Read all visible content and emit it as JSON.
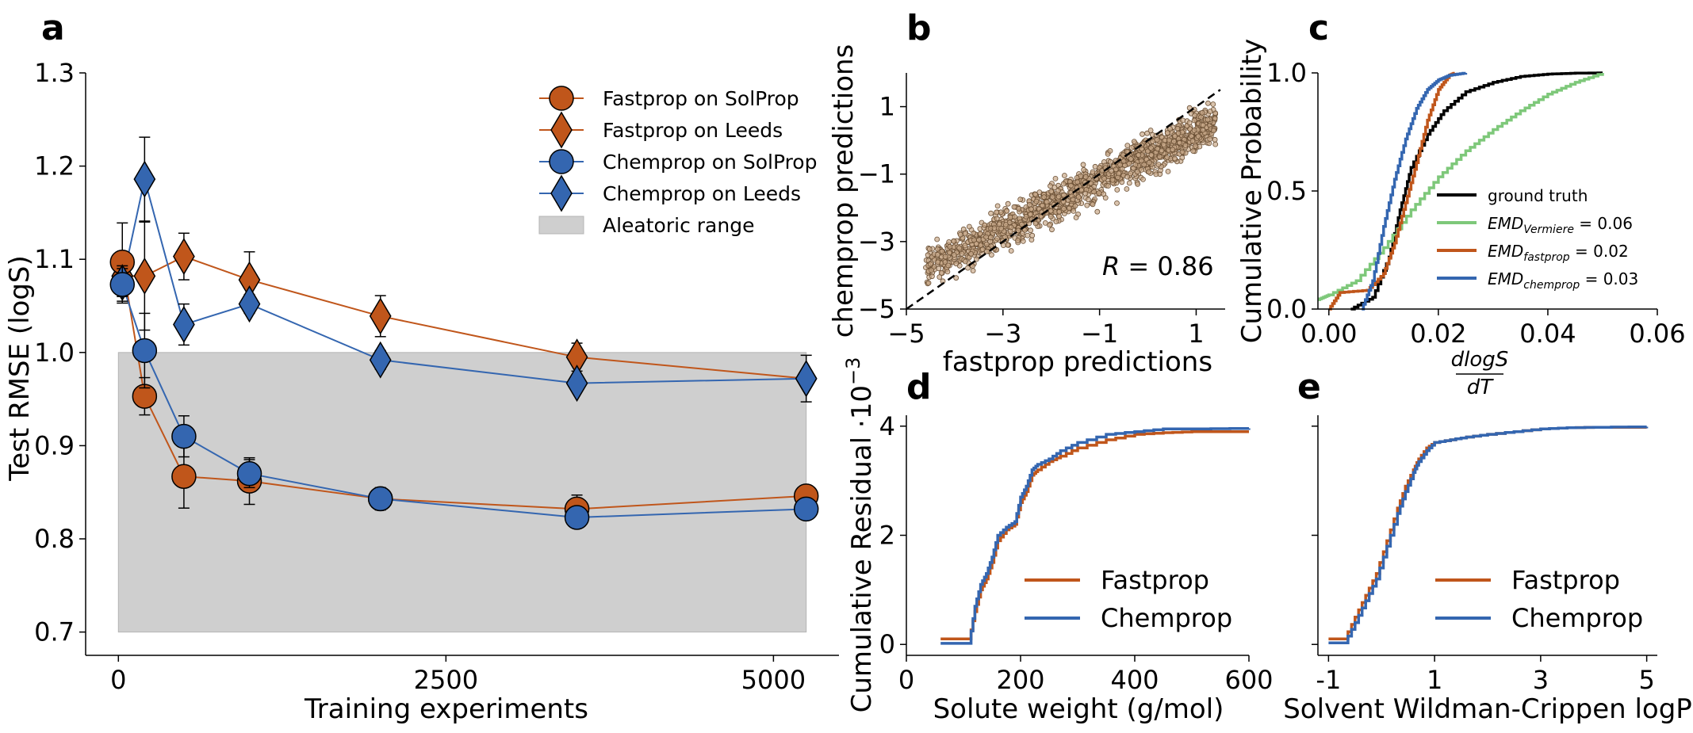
{
  "colors": {
    "fastprop": "#c0561b",
    "chemprop": "#3466b0",
    "aleatoric": "#cfcfcf",
    "ground_truth": "#000000",
    "vermiere": "#7ec87a",
    "scatter": "#b09070"
  },
  "panels": {
    "a": {
      "letter": "a"
    },
    "b": {
      "letter": "b"
    },
    "c": {
      "letter": "c"
    },
    "d": {
      "letter": "d"
    },
    "e": {
      "letter": "e"
    }
  },
  "chart_data": [
    {
      "id": "a",
      "type": "line",
      "xlabel": "Training experiments",
      "ylabel": "Test RMSE (logS)",
      "xlim": [
        -250,
        5500
      ],
      "ylim": [
        0.675,
        1.3
      ],
      "xticks": [
        0,
        2500,
        5000
      ],
      "xtick_labels": [
        "0",
        "2500",
        "5000"
      ],
      "yticks": [
        0.7,
        0.8,
        0.9,
        1.0,
        1.1,
        1.2,
        1.3
      ],
      "ytick_labels": [
        "0.7",
        "0.8",
        "0.9",
        "1.0",
        "1.1",
        "1.2",
        "1.3"
      ],
      "legend_position": "top-right",
      "aleatoric_band": {
        "label": "Aleatoric range",
        "x": [
          0,
          5250
        ],
        "y": [
          0.7,
          1.0
        ]
      },
      "series": [
        {
          "name": "Fastprop on SolProp",
          "marker": "circle",
          "color_key": "fastprop",
          "x": [
            30,
            200,
            500,
            1000,
            2000,
            3500,
            5250
          ],
          "y": [
            1.097,
            0.953,
            0.867,
            0.862,
            0.843,
            0.832,
            0.846
          ],
          "err": [
            0.042,
            0.02,
            0.034,
            0.025,
            0.012,
            0.015,
            0.01
          ]
        },
        {
          "name": "Fastprop on Leeds",
          "marker": "diamond",
          "color_key": "fastprop",
          "x": [
            30,
            200,
            500,
            1000,
            2000,
            3500,
            5250
          ],
          "y": [
            1.082,
            1.082,
            1.103,
            1.078,
            1.039,
            0.995,
            0.972
          ],
          "err": [
            0.02,
            0.058,
            0.025,
            0.03,
            0.022,
            0.015,
            0.005
          ]
        },
        {
          "name": "Chemprop on SolProp",
          "marker": "circle",
          "color_key": "chemprop",
          "x": [
            30,
            200,
            500,
            1000,
            2000,
            3500,
            5250
          ],
          "y": [
            1.073,
            1.002,
            0.91,
            0.87,
            0.843,
            0.823,
            0.832
          ],
          "err": [
            0.02,
            0.04,
            0.022,
            0.015,
            0.01,
            0.008,
            0.008
          ]
        },
        {
          "name": "Chemprop on Leeds",
          "marker": "diamond",
          "color_key": "chemprop",
          "x": [
            30,
            200,
            500,
            1000,
            2000,
            3500,
            5250
          ],
          "y": [
            1.075,
            1.186,
            1.03,
            1.052,
            0.992,
            0.967,
            0.972
          ],
          "err": [
            0.015,
            0.045,
            0.022,
            0.01,
            0.01,
            0.008,
            0.025
          ]
        }
      ]
    },
    {
      "id": "b",
      "type": "scatter",
      "xlabel": "fastprop predictions",
      "ylabel": "chemprop predictions",
      "xlim": [
        -5,
        1.6
      ],
      "ylim": [
        -5,
        2
      ],
      "xticks": [
        -5,
        -3,
        -1,
        1
      ],
      "xtick_labels": [
        "−5",
        "−3",
        "−1",
        "1"
      ],
      "yticks": [
        -5,
        -3,
        -1,
        1
      ],
      "ytick_labels": [
        "−5",
        "−3",
        "−1",
        "1"
      ],
      "annotation": {
        "r_symbol": "R",
        "r_text": " = 0.86"
      },
      "identity_line": [
        [
          -5,
          -5
        ],
        [
          1.5,
          1.5
        ]
      ],
      "point_cloud": {
        "slope": 0.72,
        "intercept": -0.45,
        "x_range": [
          -4.6,
          1.4
        ],
        "count": 1400
      }
    },
    {
      "id": "c",
      "type": "line",
      "xlabel_num": "dlogS",
      "xlabel_den": "dT",
      "ylabel": "Cumulative Probability",
      "xlim": [
        -0.002,
        0.06
      ],
      "ylim": [
        0,
        1
      ],
      "xticks": [
        0,
        0.02,
        0.04,
        0.06
      ],
      "xtick_labels": [
        "0.00",
        "0.02",
        "0.04",
        "0.06"
      ],
      "yticks": [
        0,
        0.5,
        1.0
      ],
      "ytick_labels": [
        "0.0",
        "0.5",
        "1.0"
      ],
      "legend_position": "lower-right",
      "series": [
        {
          "name": "ground truth",
          "color_key": "ground_truth",
          "cdf": {
            "x": [
              0.004,
              0.008,
              0.011,
              0.013,
              0.015,
              0.018,
              0.021,
              0.025,
              0.03,
              0.035,
              0.04,
              0.045,
              0.05
            ],
            "y": [
              0,
              0.05,
              0.22,
              0.42,
              0.6,
              0.74,
              0.84,
              0.92,
              0.96,
              0.985,
              0.995,
              0.999,
              1
            ]
          }
        },
        {
          "name": "EMD",
          "sub": "Vermiere",
          "value_text": " = 0.06",
          "color_key": "vermiere",
          "cdf": {
            "x": [
              -0.002,
              0,
              0.005,
              0.01,
              0.015,
              0.02,
              0.025,
              0.03,
              0.035,
              0.04,
              0.045,
              0.05
            ],
            "y": [
              0.04,
              0.06,
              0.12,
              0.26,
              0.42,
              0.56,
              0.67,
              0.76,
              0.84,
              0.91,
              0.96,
              1
            ]
          }
        },
        {
          "name": "EMD",
          "sub": "fastprop",
          "value_text": " = 0.02",
          "color_key": "fastprop",
          "cdf": {
            "x": [
              0,
              0.002,
              0.007,
              0.01,
              0.012,
              0.014,
              0.016,
              0.018,
              0.02,
              0.022,
              0.023
            ],
            "y": [
              0,
              0.07,
              0.08,
              0.15,
              0.28,
              0.45,
              0.62,
              0.8,
              0.93,
              0.99,
              1
            ]
          }
        },
        {
          "name": "EMD",
          "sub": "chemprop",
          "value_text": " = 0.03",
          "color_key": "chemprop",
          "cdf": {
            "x": [
              0.006,
              0.008,
              0.01,
              0.012,
              0.014,
              0.016,
              0.018,
              0.02,
              0.022,
              0.025
            ],
            "y": [
              0,
              0.12,
              0.35,
              0.55,
              0.72,
              0.85,
              0.93,
              0.97,
              0.99,
              1
            ]
          }
        }
      ]
    },
    {
      "id": "d",
      "type": "line",
      "xlabel": "Solute weight (g/mol)",
      "ylabel_main": "Cumulative Residual ·10",
      "ylabel_exp": "−3",
      "xlim": [
        0,
        600
      ],
      "ylim": [
        -0.2,
        4.2
      ],
      "xticks": [
        0,
        200,
        400,
        600
      ],
      "xtick_labels": [
        "0",
        "200",
        "400",
        "600"
      ],
      "yticks": [
        0,
        2,
        4
      ],
      "ytick_labels": [
        "0",
        "2",
        "4"
      ],
      "legend_position": "lower-right",
      "series": [
        {
          "name": "Fastprop",
          "color_key": "fastprop",
          "x": [
            60,
            110,
            120,
            130,
            140,
            150,
            160,
            175,
            190,
            200,
            210,
            220,
            230,
            250,
            270,
            300,
            350,
            400,
            450,
            500,
            600
          ],
          "y": [
            0.1,
            0.1,
            0.6,
            1.0,
            1.2,
            1.5,
            1.9,
            2.1,
            2.2,
            2.6,
            2.8,
            3.1,
            3.2,
            3.35,
            3.45,
            3.6,
            3.75,
            3.85,
            3.88,
            3.9,
            3.9
          ]
        },
        {
          "name": "Chemprop",
          "color_key": "chemprop",
          "x": [
            60,
            110,
            120,
            130,
            140,
            150,
            160,
            175,
            190,
            200,
            210,
            220,
            230,
            250,
            270,
            300,
            350,
            400,
            450,
            500,
            600
          ],
          "y": [
            0.02,
            0.02,
            0.7,
            1.1,
            1.3,
            1.6,
            2.0,
            2.15,
            2.25,
            2.7,
            2.9,
            3.2,
            3.3,
            3.4,
            3.55,
            3.7,
            3.85,
            3.9,
            3.95,
            3.95,
            3.96
          ]
        }
      ]
    },
    {
      "id": "e",
      "type": "line",
      "xlabel": "Solvent Wildman-Crippen logP",
      "xlim": [
        -1.2,
        5.2
      ],
      "ylim": [
        -0.2,
        4.2
      ],
      "xticks": [
        -1,
        1,
        3,
        5
      ],
      "xtick_labels": [
        "-1",
        "1",
        "3",
        "5"
      ],
      "yticks": [
        0,
        2,
        4
      ],
      "ytick_labels": [
        "",
        "",
        ""
      ],
      "legend_position": "lower-right",
      "series": [
        {
          "name": "Fastprop",
          "color_key": "fastprop",
          "x": [
            -1,
            -0.7,
            -0.5,
            -0.3,
            -0.1,
            0.1,
            0.3,
            0.45,
            0.6,
            0.7,
            0.85,
            1.0,
            1.3,
            1.6,
            2.0,
            2.5,
            3.0,
            3.5,
            4.0,
            5.0
          ],
          "y": [
            0.1,
            0.1,
            0.5,
            0.9,
            1.3,
            1.9,
            2.5,
            2.9,
            3.2,
            3.4,
            3.6,
            3.7,
            3.75,
            3.8,
            3.85,
            3.9,
            3.95,
            3.97,
            3.98,
            3.98
          ]
        },
        {
          "name": "Chemprop",
          "color_key": "chemprop",
          "x": [
            -1,
            -0.7,
            -0.5,
            -0.3,
            -0.1,
            0.1,
            0.3,
            0.45,
            0.6,
            0.7,
            0.85,
            1.0,
            1.3,
            1.6,
            2.0,
            2.5,
            3.0,
            3.5,
            4.0,
            5.0
          ],
          "y": [
            0.03,
            0.03,
            0.4,
            0.8,
            1.2,
            1.8,
            2.4,
            2.8,
            3.15,
            3.35,
            3.55,
            3.7,
            3.75,
            3.8,
            3.85,
            3.9,
            3.95,
            3.97,
            3.98,
            3.99
          ]
        }
      ]
    }
  ]
}
